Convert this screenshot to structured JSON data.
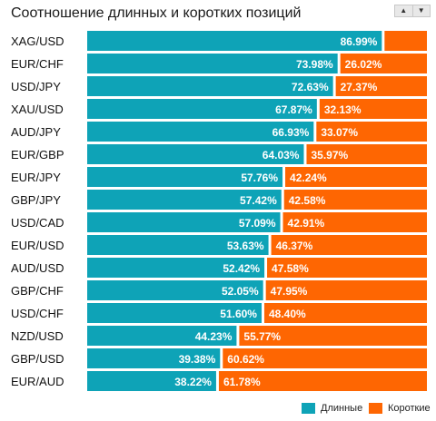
{
  "header": {
    "title": "Соотношение длинных и коротких позиций"
  },
  "sorter": {
    "up_icon": "triangle-up-icon",
    "down_icon": "triangle-down-icon"
  },
  "colors": {
    "long": "#0ea3b7",
    "short": "#fe6602"
  },
  "legend": {
    "long_label": "Длинные",
    "short_label": "Короткие"
  },
  "chart_data": {
    "type": "bar",
    "orientation": "horizontal",
    "stacked": true,
    "categories": [
      "XAG/USD",
      "EUR/CHF",
      "USD/JPY",
      "XAU/USD",
      "AUD/JPY",
      "EUR/GBP",
      "EUR/JPY",
      "GBP/JPY",
      "USD/CAD",
      "EUR/USD",
      "AUD/USD",
      "GBP/CHF",
      "USD/CHF",
      "NZD/USD",
      "GBP/USD",
      "EUR/AUD"
    ],
    "series": [
      {
        "name": "Длинные",
        "values": [
          86.99,
          73.98,
          72.63,
          67.87,
          66.93,
          64.03,
          57.76,
          57.42,
          57.09,
          53.63,
          52.42,
          52.05,
          51.6,
          44.23,
          39.38,
          38.22
        ],
        "labels": [
          "86.99%",
          "73.98%",
          "72.63%",
          "67.87%",
          "66.93%",
          "64.03%",
          "57.76%",
          "57.42%",
          "57.09%",
          "53.63%",
          "52.42%",
          "52.05%",
          "51.60%",
          "44.23%",
          "39.38%",
          "38.22%"
        ]
      },
      {
        "name": "Короткие",
        "values": [
          13.01,
          26.02,
          27.37,
          32.13,
          33.07,
          35.97,
          42.24,
          42.58,
          42.91,
          46.37,
          47.58,
          47.95,
          48.4,
          55.77,
          60.62,
          61.78
        ],
        "labels": [
          "",
          "26.02%",
          "27.37%",
          "32.13%",
          "33.07%",
          "35.97%",
          "42.24%",
          "42.58%",
          "42.91%",
          "46.37%",
          "47.58%",
          "47.95%",
          "48.40%",
          "55.77%",
          "60.62%",
          "61.78%"
        ]
      }
    ],
    "xlim": [
      0,
      100
    ],
    "grid": false,
    "legend_position": "bottom-right"
  }
}
